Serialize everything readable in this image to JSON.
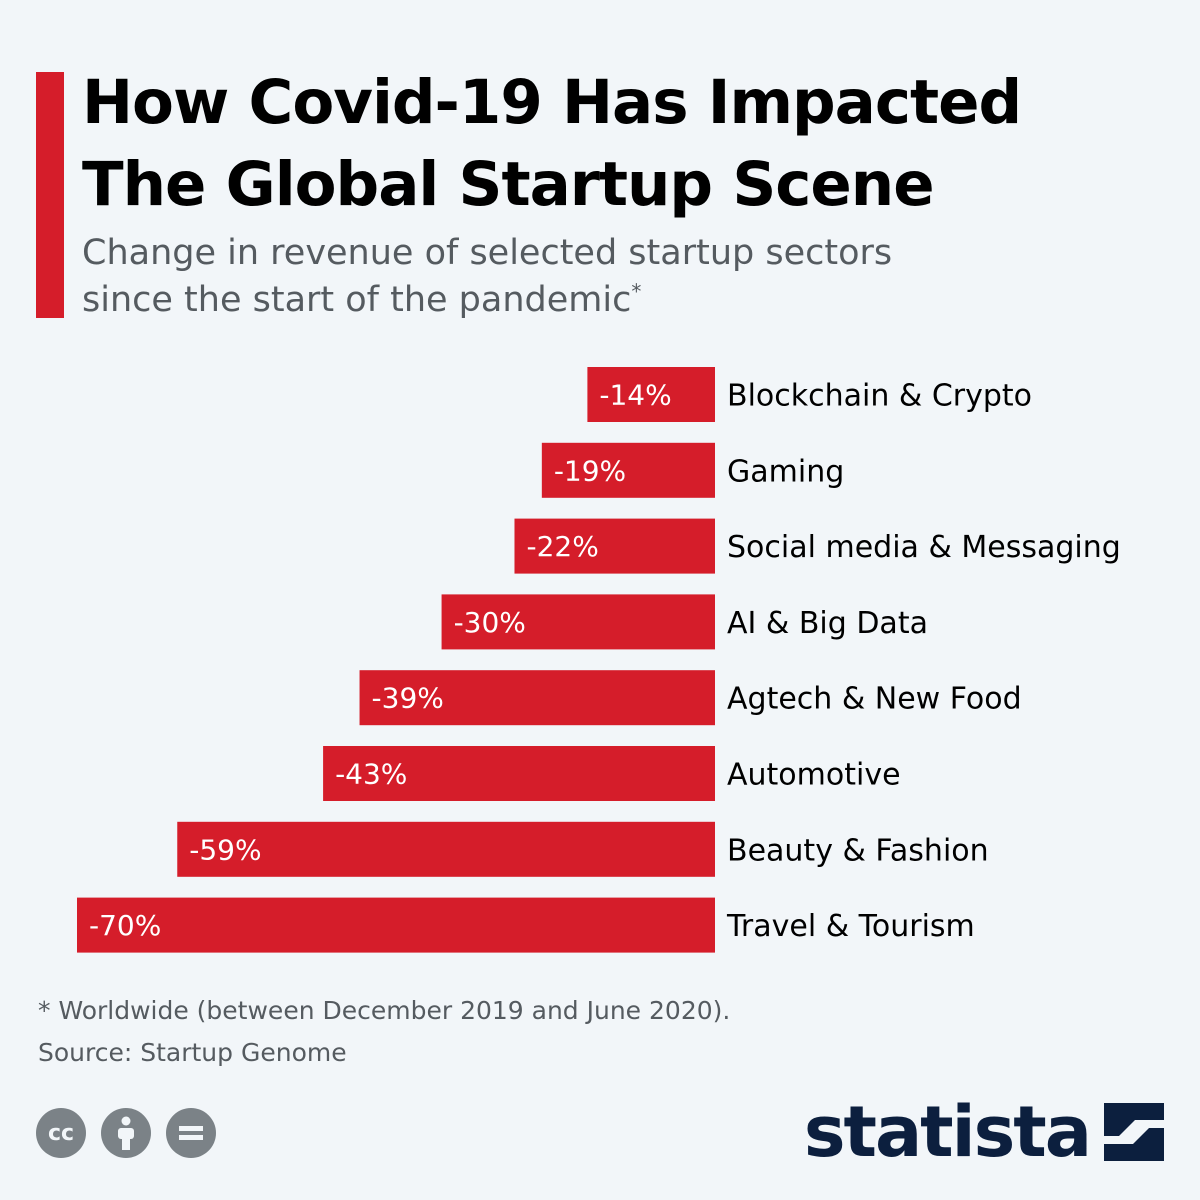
{
  "header": {
    "title_line1": "How Covid-19 Has Impacted",
    "title_line2": "The Global Startup Scene",
    "subtitle_line1": "Change in revenue of selected startup sectors",
    "subtitle_line2": "since the start of the pandemic",
    "subtitle_mark": "*"
  },
  "chart_data": {
    "type": "bar",
    "orientation": "horizontal",
    "title": "How Covid-19 Has Impacted The Global Startup Scene",
    "subtitle": "Change in revenue of selected startup sectors since the start of the pandemic*",
    "categories": [
      "Blockchain & Crypto",
      "Gaming",
      "Social media & Messaging",
      "AI & Big Data",
      "Agtech & New Food",
      "Automotive",
      "Beauty & Fashion",
      "Travel & Tourism"
    ],
    "values": [
      -14,
      -19,
      -22,
      -30,
      -39,
      -43,
      -59,
      -70
    ],
    "value_labels": [
      "-14%",
      "-19%",
      "-22%",
      "-30%",
      "-39%",
      "-43%",
      "-59%",
      "-70%"
    ],
    "unit": "%",
    "xlim": [
      -70,
      0
    ],
    "grid": false,
    "legend": "none",
    "color": "#d51d2a"
  },
  "footer": {
    "note": "* Worldwide (between December 2019 and June 2020).",
    "source": "Source: Startup Genome",
    "cc_label": "cc",
    "brand": "statista"
  },
  "colors": {
    "accent": "#d51d2a",
    "brand": "#0c1f3e",
    "background": "#f2f6f9",
    "muted_text": "#555b60"
  }
}
